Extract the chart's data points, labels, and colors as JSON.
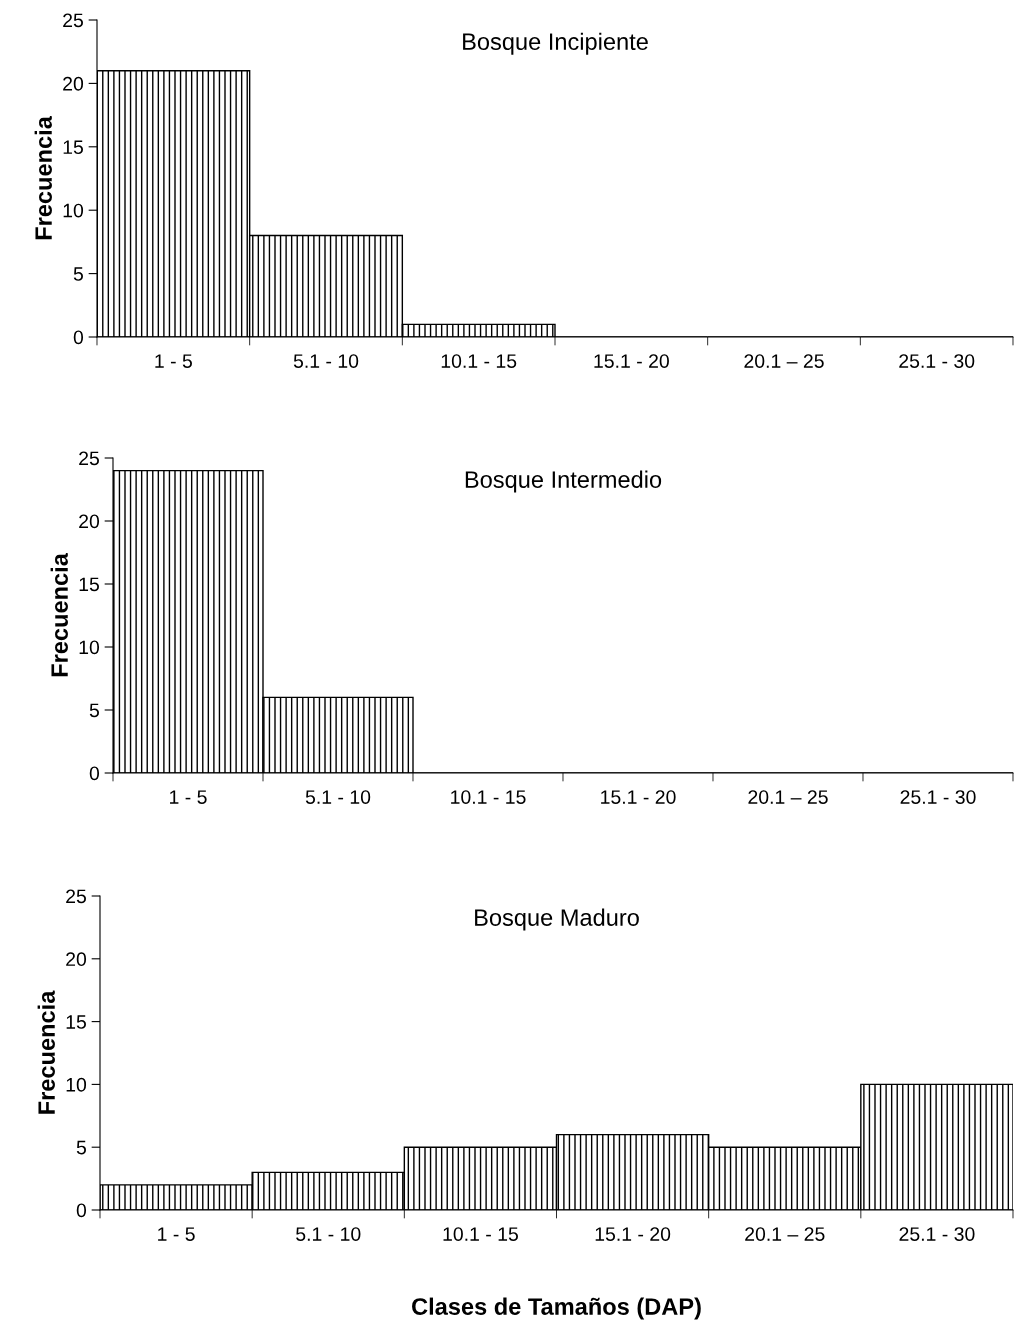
{
  "chart_data": [
    {
      "type": "bar",
      "title": "Bosque Incipiente",
      "ylabel": "Frecuencia",
      "categories": [
        "1 - 5",
        "5.1 - 10",
        "10.1 - 15",
        "15.1 - 20",
        "20.1 – 25",
        "25.1 - 30"
      ],
      "values": [
        21,
        8,
        1,
        0,
        0,
        0
      ],
      "color": "#000000",
      "ylim": [
        0,
        25
      ],
      "yticks": [
        0,
        5,
        10,
        15,
        20,
        25
      ],
      "grid": false,
      "legend": false
    },
    {
      "type": "bar",
      "title": "Bosque Intermedio",
      "ylabel": "Frecuencia",
      "categories": [
        "1 - 5",
        "5.1 - 10",
        "10.1 - 15",
        "15.1 - 20",
        "20.1 – 25",
        "25.1 - 30"
      ],
      "values": [
        24,
        6,
        0,
        0,
        0,
        0
      ],
      "color": "#000000",
      "ylim": [
        0,
        25
      ],
      "yticks": [
        0,
        5,
        10,
        15,
        20,
        25
      ],
      "grid": false,
      "legend": false
    },
    {
      "type": "bar",
      "title": "Bosque Maduro",
      "ylabel": "Frecuencia",
      "xlabel": "Clases de Tamaños (DAP)",
      "categories": [
        "1 - 5",
        "5.1 - 10",
        "10.1 - 15",
        "15.1 - 20",
        "20.1 – 25",
        "25.1 - 30"
      ],
      "values": [
        2,
        3,
        5,
        6,
        5,
        10
      ],
      "color": "#000000",
      "ylim": [
        0,
        25
      ],
      "yticks": [
        0,
        5,
        10,
        15,
        20,
        25
      ],
      "grid": false,
      "legend": false
    }
  ]
}
